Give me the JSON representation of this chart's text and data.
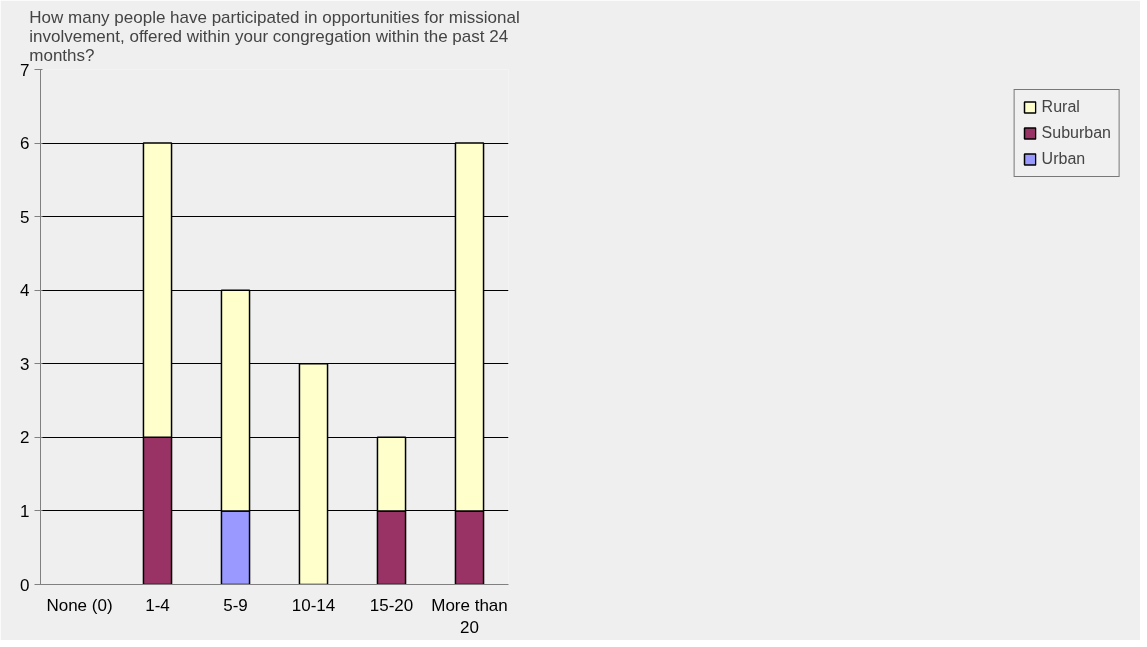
{
  "chart_data": {
    "type": "bar",
    "title": "How many people have participated in opportunities for missional involvement, offered within your congregation within the past 24 months?",
    "categories": [
      "None (0)",
      "1-4",
      "5-9",
      "10-14",
      "15-20",
      "More than 20"
    ],
    "stacked": true,
    "series": [
      {
        "name": "Urban",
        "color": "#9999ff",
        "values": [
          0,
          0,
          1,
          0,
          0,
          0
        ]
      },
      {
        "name": "Suburban",
        "color": "#993366",
        "values": [
          0,
          2,
          0,
          0,
          1,
          1
        ]
      },
      {
        "name": "Rural",
        "color": "#ffffcc",
        "values": [
          0,
          4,
          3,
          3,
          1,
          5
        ]
      }
    ],
    "ylim": [
      0,
      7
    ],
    "yticks": [
      0,
      1,
      2,
      3,
      4,
      5,
      6,
      7
    ],
    "grid": "y",
    "legend": "right"
  }
}
